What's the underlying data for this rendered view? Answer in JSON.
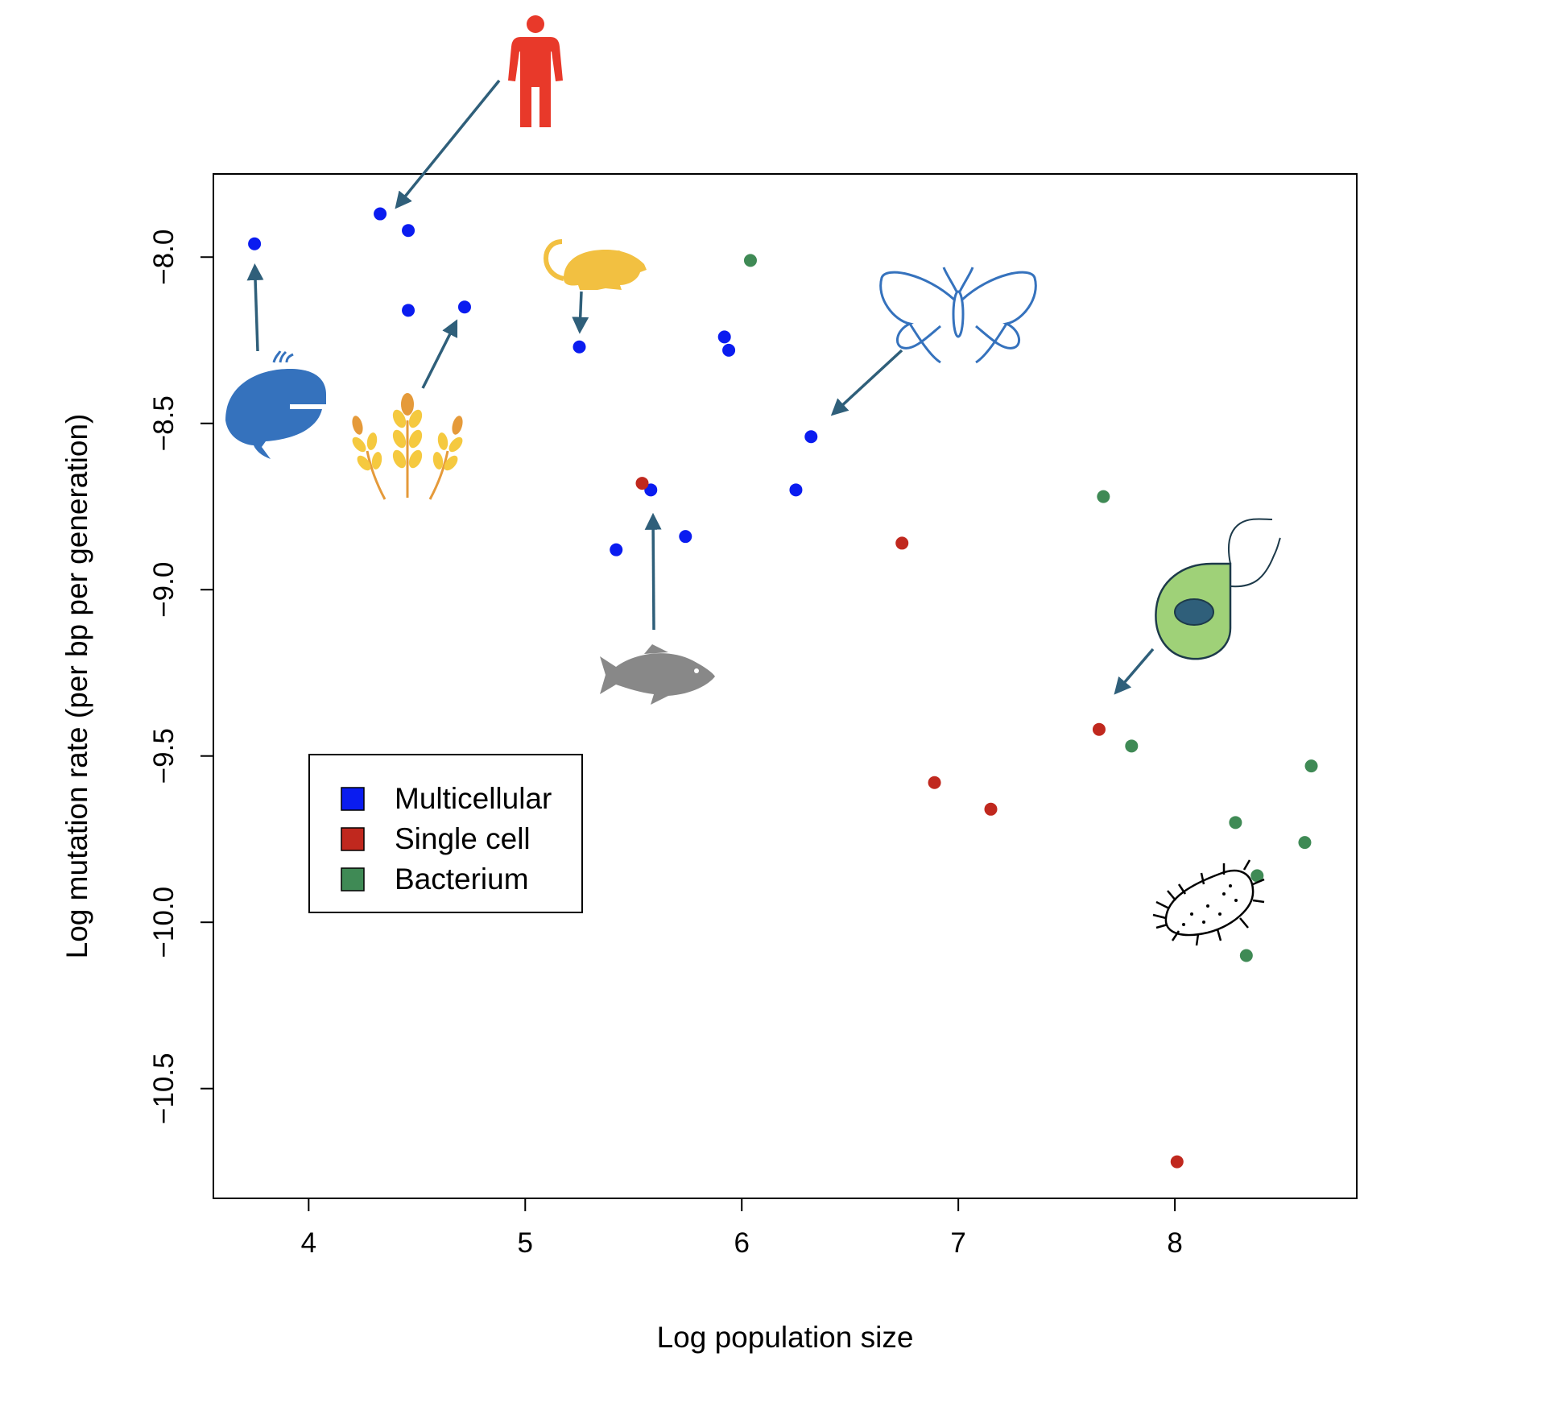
{
  "chart_data": {
    "type": "scatter",
    "title": "",
    "xlabel": "Log population size",
    "ylabel": "Log mutation rate (per bp per generation)",
    "xlim": [
      3.56,
      8.84
    ],
    "ylim": [
      -10.83,
      -7.75
    ],
    "x_ticks": [
      "4",
      "5",
      "6",
      "7",
      "8"
    ],
    "y_ticks": [
      "-8.0",
      "-8.5",
      "-9.0",
      "-9.5",
      "-10.0",
      "-10.5"
    ],
    "legend": {
      "placement": "center-left",
      "entries": [
        {
          "label": "Multicellular",
          "color": "#0a1cf0"
        },
        {
          "label": "Single cell",
          "color": "#c0281e"
        },
        {
          "label": "Bacterium",
          "color": "#3f8a55"
        }
      ]
    },
    "series": [
      {
        "name": "Multicellular",
        "color": "#0a1cf0",
        "points": [
          {
            "x": 3.75,
            "y": -7.96
          },
          {
            "x": 4.33,
            "y": -7.87
          },
          {
            "x": 4.46,
            "y": -7.92
          },
          {
            "x": 4.46,
            "y": -8.16
          },
          {
            "x": 4.72,
            "y": -8.15
          },
          {
            "x": 5.25,
            "y": -8.27
          },
          {
            "x": 5.92,
            "y": -8.24
          },
          {
            "x": 5.94,
            "y": -8.28
          },
          {
            "x": 6.32,
            "y": -8.54
          },
          {
            "x": 6.25,
            "y": -8.7
          },
          {
            "x": 5.58,
            "y": -8.7
          },
          {
            "x": 5.42,
            "y": -8.88
          },
          {
            "x": 5.74,
            "y": -8.84
          }
        ]
      },
      {
        "name": "Single cell",
        "color": "#c0281e",
        "points": [
          {
            "x": 5.54,
            "y": -8.68
          },
          {
            "x": 6.74,
            "y": -8.86
          },
          {
            "x": 7.65,
            "y": -9.42
          },
          {
            "x": 6.89,
            "y": -9.58
          },
          {
            "x": 7.15,
            "y": -9.66
          },
          {
            "x": 8.01,
            "y": -10.72
          }
        ]
      },
      {
        "name": "Bacterium",
        "color": "#3f8a55",
        "points": [
          {
            "x": 6.04,
            "y": -8.01
          },
          {
            "x": 7.67,
            "y": -8.72
          },
          {
            "x": 7.8,
            "y": -9.47
          },
          {
            "x": 8.63,
            "y": -9.53
          },
          {
            "x": 8.28,
            "y": -9.7
          },
          {
            "x": 8.6,
            "y": -9.76
          },
          {
            "x": 8.38,
            "y": -9.86
          },
          {
            "x": 8.33,
            "y": -10.1
          }
        ]
      }
    ],
    "annotations": [
      {
        "icon": "human-icon",
        "color": "#e8392a",
        "arrow_to": {
          "x": 4.38,
          "y": -7.87
        }
      },
      {
        "icon": "whale-icon",
        "color": "#3572bd",
        "arrow_to": {
          "x": 3.75,
          "y": -8.0
        }
      },
      {
        "icon": "wheat-icon",
        "color": "#f5c93f",
        "arrow_to": {
          "x": 4.7,
          "y": -8.17
        }
      },
      {
        "icon": "mouse-icon",
        "color": "#f2c041",
        "arrow_to": {
          "x": 5.25,
          "y": -8.25
        }
      },
      {
        "icon": "butterfly-icon",
        "color": "#3572bd",
        "arrow_to": {
          "x": 6.39,
          "y": -8.49
        }
      },
      {
        "icon": "fish-icon",
        "color": "#888888",
        "arrow_to": {
          "x": 5.59,
          "y": -8.75
        }
      },
      {
        "icon": "flagellate-cell-icon",
        "color": "#9fd178",
        "arrow_to": {
          "x": 7.7,
          "y": -9.33
        }
      },
      {
        "icon": "bacterium-icon",
        "color": "#000000",
        "arrow_to": null
      }
    ],
    "grid": false
  }
}
